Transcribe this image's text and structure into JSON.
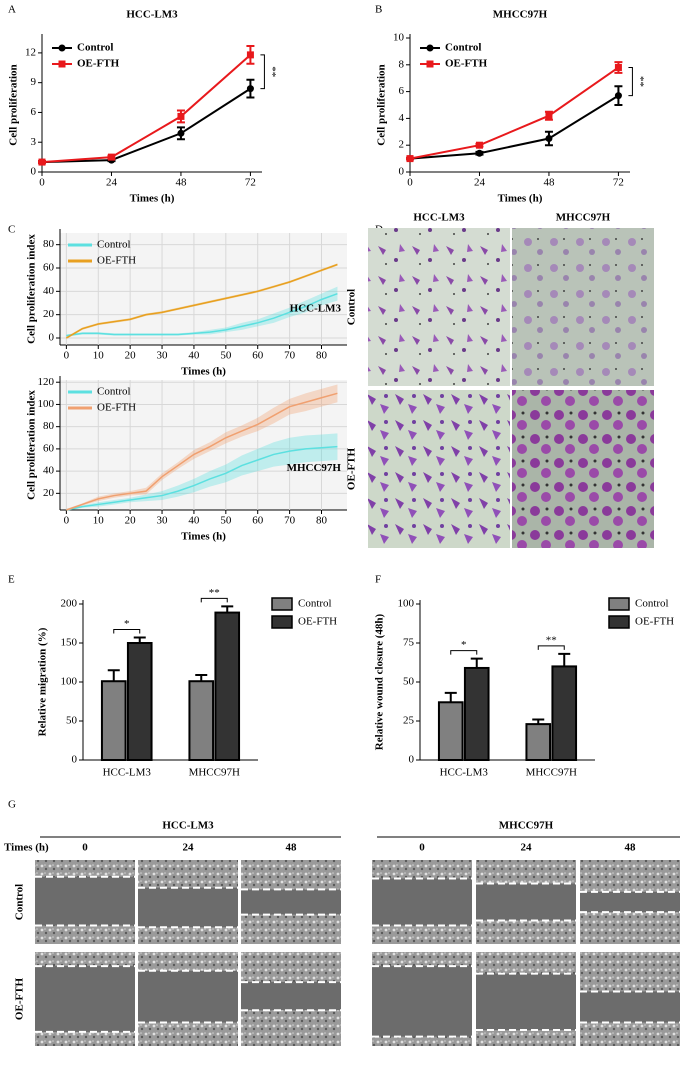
{
  "chart_data": [
    {
      "type": "line",
      "label": "A",
      "title": "HCC-LM3",
      "x_label": "Times (h)",
      "y_label": "Cell proliferation",
      "x": [
        0,
        24,
        48,
        72
      ],
      "xlim": [
        0,
        76
      ],
      "xticks": [
        0,
        24,
        48,
        72
      ],
      "ylim": [
        0,
        13.5
      ],
      "yticks": [
        0,
        3,
        6,
        9,
        12
      ],
      "legend": "upper left",
      "annotation": "**",
      "series": [
        {
          "name": "Control",
          "color": "#000000",
          "values": [
            1,
            1.2,
            3.9,
            8.4
          ],
          "errors": [
            0.1,
            0.1,
            0.6,
            0.9
          ]
        },
        {
          "name": "OE-FTH",
          "color": "#e8191c",
          "values": [
            1,
            1.5,
            5.6,
            11.8
          ],
          "errors": [
            0.1,
            0.15,
            0.6,
            0.9
          ]
        }
      ]
    },
    {
      "type": "line",
      "label": "B",
      "title": "MHCC97H",
      "x_label": "Times (h)",
      "y_label": "Cell proliferation",
      "x": [
        0,
        24,
        48,
        72
      ],
      "xlim": [
        0,
        76
      ],
      "xticks": [
        0,
        24,
        48,
        72
      ],
      "ylim": [
        0,
        10
      ],
      "yticks": [
        0,
        2,
        4,
        6,
        8,
        10
      ],
      "legend": "upper left",
      "annotation": "**",
      "series": [
        {
          "name": "Control",
          "color": "#000000",
          "values": [
            1,
            1.4,
            2.5,
            5.7
          ],
          "errors": [
            0.05,
            0.1,
            0.5,
            0.7
          ]
        },
        {
          "name": "OE-FTH",
          "color": "#e8191c",
          "values": [
            1,
            2,
            4.2,
            7.8
          ],
          "errors": [
            0.05,
            0.1,
            0.3,
            0.4
          ]
        }
      ]
    },
    {
      "type": "area_line",
      "label": "C",
      "x_label": "Times (h)",
      "y_label": "Cell proliferation index",
      "annotation": "HCC-LM3",
      "x": [
        0,
        5,
        10,
        15,
        20,
        25,
        30,
        35,
        40,
        45,
        50,
        55,
        60,
        65,
        70,
        75,
        80,
        85
      ],
      "xlim": [
        -2,
        88
      ],
      "xticks": [
        0,
        10,
        20,
        30,
        40,
        50,
        60,
        70,
        80
      ],
      "ylim": [
        -6,
        90
      ],
      "yticks": [
        0,
        20,
        40,
        60,
        80
      ],
      "grid": true,
      "legend": "upper left",
      "series": [
        {
          "name": "Control",
          "color": "#5ce0e0",
          "values": [
            2,
            4,
            4,
            3,
            3,
            3,
            3,
            3,
            4,
            5,
            7,
            10,
            13,
            17,
            22,
            27,
            33,
            38
          ],
          "errors": [
            1,
            1,
            1,
            1,
            1,
            1,
            1,
            1,
            1,
            2,
            2,
            3,
            3,
            4,
            4,
            5,
            5,
            6
          ]
        },
        {
          "name": "OE-FTH",
          "color": "#e8a020",
          "values": [
            0,
            8,
            12,
            14,
            16,
            20,
            22,
            25,
            28,
            31,
            34,
            37,
            40,
            44,
            48,
            53,
            58,
            63
          ],
          "errors": [
            1,
            1,
            1,
            1,
            1,
            1,
            1,
            1,
            1,
            1,
            1,
            1,
            1,
            1,
            1,
            1,
            1,
            1
          ]
        }
      ]
    },
    {
      "type": "area_line",
      "x_label": "Times (h)",
      "y_label": "Cell proliferation index",
      "annotation": "MHCC97H",
      "x": [
        0,
        5,
        10,
        15,
        20,
        25,
        30,
        35,
        40,
        45,
        50,
        55,
        60,
        65,
        70,
        75,
        80,
        85
      ],
      "xlim": [
        -2,
        88
      ],
      "xticks": [
        0,
        10,
        20,
        30,
        40,
        50,
        60,
        70,
        80
      ],
      "ylim": [
        5,
        122
      ],
      "yticks": [
        20,
        40,
        60,
        80,
        100,
        120
      ],
      "grid": true,
      "legend": "upper left",
      "series": [
        {
          "name": "Control",
          "color": "#5ce0e0",
          "values": [
            5,
            8,
            10,
            12,
            14,
            16,
            18,
            22,
            27,
            33,
            38,
            45,
            50,
            55,
            58,
            60,
            61,
            62
          ],
          "errors": [
            1,
            1,
            2,
            2,
            2,
            3,
            4,
            5,
            6,
            7,
            8,
            9,
            10,
            11,
            12,
            12,
            12,
            12
          ]
        },
        {
          "name": "OE-FTH",
          "color": "#f0a070",
          "values": [
            5,
            10,
            15,
            18,
            20,
            22,
            35,
            45,
            55,
            62,
            70,
            76,
            82,
            90,
            98,
            102,
            106,
            110
          ],
          "errors": [
            1,
            1,
            2,
            2,
            2,
            3,
            3,
            3,
            4,
            4,
            5,
            5,
            6,
            7,
            7,
            8,
            8,
            8
          ]
        }
      ]
    },
    {
      "type": "bar",
      "label": "E",
      "y_label": "Relative migration (%)",
      "categories": [
        "HCC-LM3",
        "MHCC97H"
      ],
      "ylim": [
        0,
        200
      ],
      "yticks": [
        0,
        50,
        100,
        150,
        200
      ],
      "legend": "upper right",
      "significance": [
        "*",
        "**"
      ],
      "series": [
        {
          "name": "Control",
          "color": "#808080",
          "values": [
            101,
            101
          ],
          "errors": [
            14,
            8
          ]
        },
        {
          "name": "OE-FTH",
          "color": "#333333",
          "values": [
            150,
            189
          ],
          "errors": [
            7,
            8
          ]
        }
      ]
    },
    {
      "type": "bar",
      "label": "F",
      "y_label": "Relative wound closure (48h)",
      "categories": [
        "HCC-LM3",
        "MHCC97H"
      ],
      "ylim": [
        0,
        100
      ],
      "yticks": [
        0,
        25,
        50,
        75,
        100
      ],
      "legend": "upper right",
      "significance": [
        "*",
        "**"
      ],
      "series": [
        {
          "name": "Control",
          "color": "#808080",
          "values": [
            37,
            23
          ],
          "errors": [
            6,
            3
          ]
        },
        {
          "name": "OE-FTH",
          "color": "#333333",
          "values": [
            59,
            60
          ],
          "errors": [
            6,
            8
          ]
        }
      ]
    }
  ],
  "image_panels": {
    "D": {
      "label": "D",
      "columns": [
        "HCC-LM3",
        "MHCC97H"
      ],
      "rows": [
        "Control",
        "OE-FTH"
      ]
    },
    "G": {
      "label": "G",
      "groups": [
        "HCC-LM3",
        "MHCC97H"
      ],
      "time_label": "Times (h)",
      "times": [
        0,
        24,
        48
      ],
      "rows": [
        "Control",
        "OE-FTH"
      ]
    }
  }
}
